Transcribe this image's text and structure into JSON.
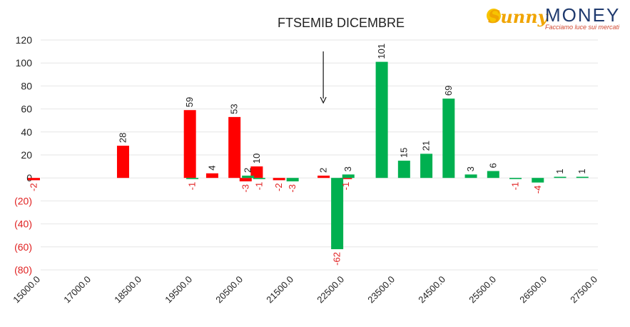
{
  "brand": {
    "sunny": "Sunny",
    "money": "MONEY",
    "tagline": "Facciamo luce sui mercati"
  },
  "colors": {
    "negative": "#ff0000",
    "positive": "#00b050",
    "negative_tick": "#e02020",
    "axis_text": "#222222"
  },
  "chart_data": {
    "type": "bar",
    "title": "FTSEMIB DICEMBRE",
    "xlabel": "",
    "ylabel": "",
    "ylim": [
      -80,
      120
    ],
    "y_ticks": [
      {
        "value": 120,
        "label": "120"
      },
      {
        "value": 100,
        "label": "100"
      },
      {
        "value": 80,
        "label": "80"
      },
      {
        "value": 60,
        "label": "60"
      },
      {
        "value": 40,
        "label": "40"
      },
      {
        "value": 20,
        "label": "20"
      },
      {
        "value": 0,
        "label": "0"
      },
      {
        "value": -20,
        "label": "(20)"
      },
      {
        "value": -40,
        "label": "(40)"
      },
      {
        "value": -60,
        "label": "(60)"
      },
      {
        "value": -80,
        "label": "(80)"
      }
    ],
    "x_tick_labels": [
      "15000.0",
      "17000.0",
      "18500.0",
      "19500.0",
      "20500.0",
      "21500.0",
      "22500.0",
      "23500.0",
      "24500.0",
      "25500.0",
      "26500.0",
      "27500.0"
    ],
    "arrow_at_strike": 21500,
    "series": [
      {
        "name": "",
        "color": "#ff0000",
        "points": [
          {
            "strike": 15000,
            "value": -2
          },
          {
            "strike": 17000,
            "value": 28
          },
          {
            "strike": 18500,
            "value": 59
          },
          {
            "strike": 19000,
            "value": 4
          },
          {
            "strike": 19500,
            "value": 53
          },
          {
            "strike": 19750,
            "value": -3
          },
          {
            "strike": 20000,
            "value": 10
          },
          {
            "strike": 20500,
            "value": -2
          },
          {
            "strike": 21500,
            "value": 2
          },
          {
            "strike": 22000,
            "value": -1
          }
        ]
      },
      {
        "name": "",
        "color": "#00b050",
        "points": [
          {
            "strike": 18250,
            "value": -1
          },
          {
            "strike": 19500,
            "value": 2
          },
          {
            "strike": 19750,
            "value": -1
          },
          {
            "strike": 20500,
            "value": -3
          },
          {
            "strike": 21500,
            "value": -62
          },
          {
            "strike": 21750,
            "value": 3
          },
          {
            "strike": 22500,
            "value": 101
          },
          {
            "strike": 23000,
            "value": 15
          },
          {
            "strike": 23500,
            "value": 21
          },
          {
            "strike": 24000,
            "value": 69
          },
          {
            "strike": 24500,
            "value": 3
          },
          {
            "strike": 25000,
            "value": 6
          },
          {
            "strike": 25500,
            "value": -1
          },
          {
            "strike": 26000,
            "value": -4
          },
          {
            "strike": 26500,
            "value": 1
          },
          {
            "strike": 27000,
            "value": 1
          }
        ]
      }
    ]
  }
}
